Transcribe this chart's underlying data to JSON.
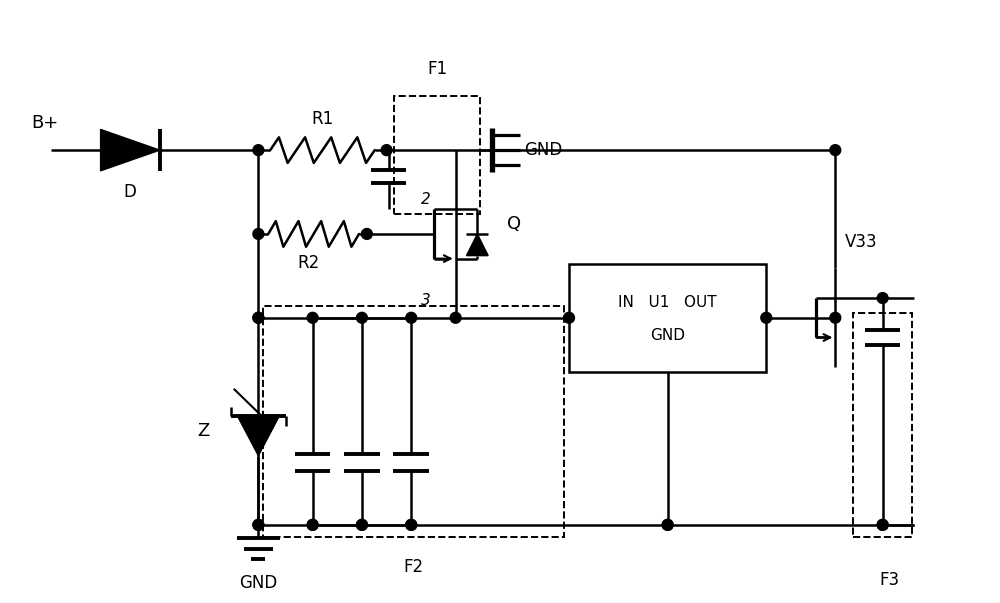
{
  "fig_width": 10.0,
  "fig_height": 6.03,
  "dpi": 100,
  "bg_color": "#ffffff",
  "line_color": "#000000",
  "lw": 1.8,
  "labels": {
    "Bplus": "B+",
    "D": "D",
    "R1": "R1",
    "R2": "R2",
    "Q": "Q",
    "Z": "Z",
    "GND_top": "GND",
    "GND_bot": "GND",
    "F1": "F1",
    "F2": "F2",
    "F3": "F3",
    "U1_line1": "IN   U1   OUT",
    "U1_line2": "GND",
    "V33": "V33",
    "n2": "2",
    "n3": "3"
  }
}
